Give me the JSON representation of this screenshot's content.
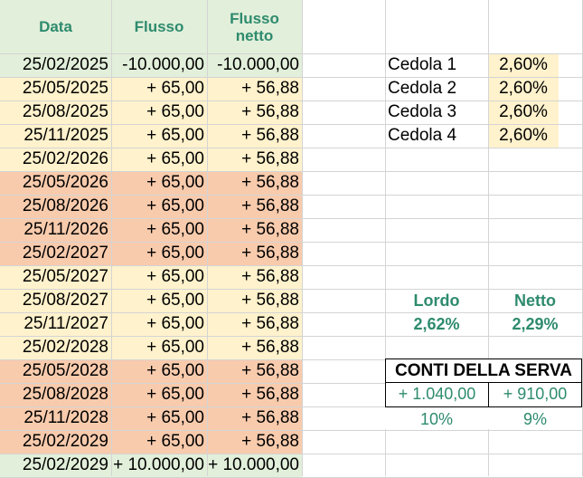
{
  "colors": {
    "header_bg": "#e2efda",
    "first_row_bg": "#e2efda",
    "cream": "#fff2cc",
    "salmon": "#f8cbad",
    "last_row_bg": "#e2efda",
    "accent_green": "#2e8b6e",
    "grid": "#d4d4d4"
  },
  "headers": {
    "data": "Data",
    "flusso": "Flusso",
    "flusso_netto": "Flusso netto"
  },
  "rows": [
    {
      "date": "25/02/2025",
      "flusso": "-10.000,00",
      "netto": "-10.000,00",
      "fill": "first_row_bg"
    },
    {
      "date": "25/05/2025",
      "flusso": "+ 65,00",
      "netto": "+ 56,88",
      "fill": "cream"
    },
    {
      "date": "25/08/2025",
      "flusso": "+ 65,00",
      "netto": "+ 56,88",
      "fill": "cream"
    },
    {
      "date": "25/11/2025",
      "flusso": "+ 65,00",
      "netto": "+ 56,88",
      "fill": "cream"
    },
    {
      "date": "25/02/2026",
      "flusso": "+ 65,00",
      "netto": "+ 56,88",
      "fill": "cream"
    },
    {
      "date": "25/05/2026",
      "flusso": "+ 65,00",
      "netto": "+ 56,88",
      "fill": "salmon"
    },
    {
      "date": "25/08/2026",
      "flusso": "+ 65,00",
      "netto": "+ 56,88",
      "fill": "salmon"
    },
    {
      "date": "25/11/2026",
      "flusso": "+ 65,00",
      "netto": "+ 56,88",
      "fill": "salmon"
    },
    {
      "date": "25/02/2027",
      "flusso": "+ 65,00",
      "netto": "+ 56,88",
      "fill": "salmon"
    },
    {
      "date": "25/05/2027",
      "flusso": "+ 65,00",
      "netto": "+ 56,88",
      "fill": "cream"
    },
    {
      "date": "25/08/2027",
      "flusso": "+ 65,00",
      "netto": "+ 56,88",
      "fill": "cream"
    },
    {
      "date": "25/11/2027",
      "flusso": "+ 65,00",
      "netto": "+ 56,88",
      "fill": "cream"
    },
    {
      "date": "25/02/2028",
      "flusso": "+ 65,00",
      "netto": "+ 56,88",
      "fill": "cream"
    },
    {
      "date": "25/05/2028",
      "flusso": "+ 65,00",
      "netto": "+ 56,88",
      "fill": "salmon"
    },
    {
      "date": "25/08/2028",
      "flusso": "+ 65,00",
      "netto": "+ 56,88",
      "fill": "salmon"
    },
    {
      "date": "25/11/2028",
      "flusso": "+ 65,00",
      "netto": "+ 56,88",
      "fill": "salmon"
    },
    {
      "date": "25/02/2029",
      "flusso": "+ 65,00",
      "netto": "+ 56,88",
      "fill": "salmon"
    },
    {
      "date": "25/02/2029",
      "flusso": "+ 10.000,00",
      "netto": "+ 10.000,00",
      "fill": "last_row_bg"
    }
  ],
  "cedole": [
    {
      "label": "Cedola 1",
      "value": "2,60%"
    },
    {
      "label": "Cedola 2",
      "value": "2,60%"
    },
    {
      "label": "Cedola 3",
      "value": "2,60%"
    },
    {
      "label": "Cedola 4",
      "value": "2,60%"
    }
  ],
  "rendimento": {
    "lordo_label": "Lordo",
    "netto_label": "Netto",
    "lordo_value": "2,62%",
    "netto_value": "2,29%"
  },
  "conti": {
    "title": "CONTI DELLA SERVA",
    "lordo_total": "+ 1.040,00",
    "netto_total": "+ 910,00",
    "lordo_pct": "10%",
    "netto_pct": "9%"
  }
}
